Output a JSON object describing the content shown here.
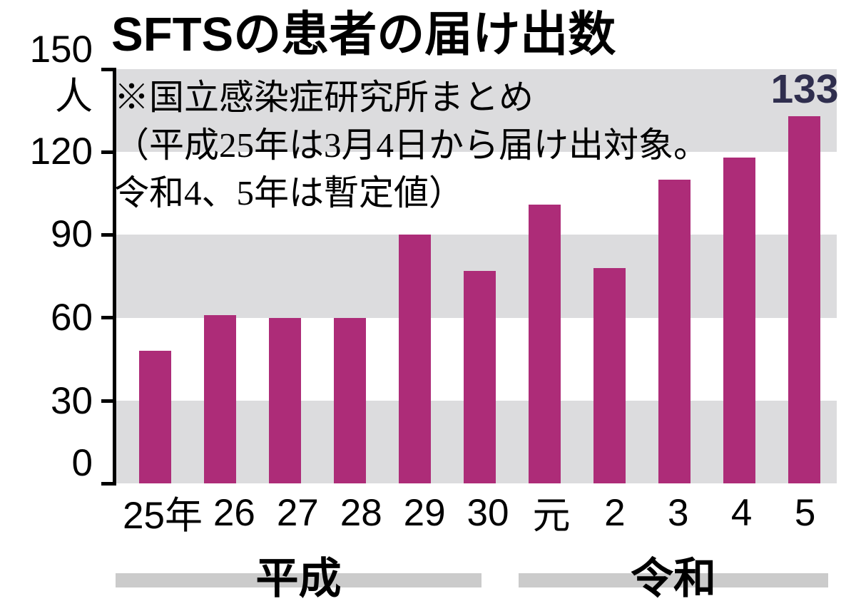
{
  "chart_data": {
    "type": "bar",
    "title": "SFTSの患者の届け出数",
    "unit_label": "人",
    "y_ticks": [
      "150",
      "120",
      "90",
      "60",
      "30",
      "0"
    ],
    "ylim": [
      0,
      150
    ],
    "grid": "alternating-horizontal-bands",
    "legend": "none",
    "categories": [
      "25年",
      "26",
      "27",
      "28",
      "29",
      "30",
      "元",
      "2",
      "3",
      "4",
      "5"
    ],
    "values": [
      48,
      61,
      60,
      60,
      90,
      77,
      101,
      78,
      110,
      118,
      133
    ],
    "era_groups": [
      {
        "label": "平成",
        "start_index": 0,
        "end_index": 5
      },
      {
        "label": "令和",
        "start_index": 6,
        "end_index": 10
      }
    ],
    "value_labels": [
      {
        "index": 10,
        "text": "133"
      }
    ],
    "notes": [
      "※国立感染症研究所まとめ",
      "（平成25年は3月4日から届け出対象。",
      "令和4、5年は暫定値）"
    ],
    "colors": {
      "bar": "#ad2c78",
      "plot_band": "#dcdcde",
      "era_band": "#cbcbcb",
      "value_label": "#2f2e4e",
      "text": "#000000"
    }
  }
}
